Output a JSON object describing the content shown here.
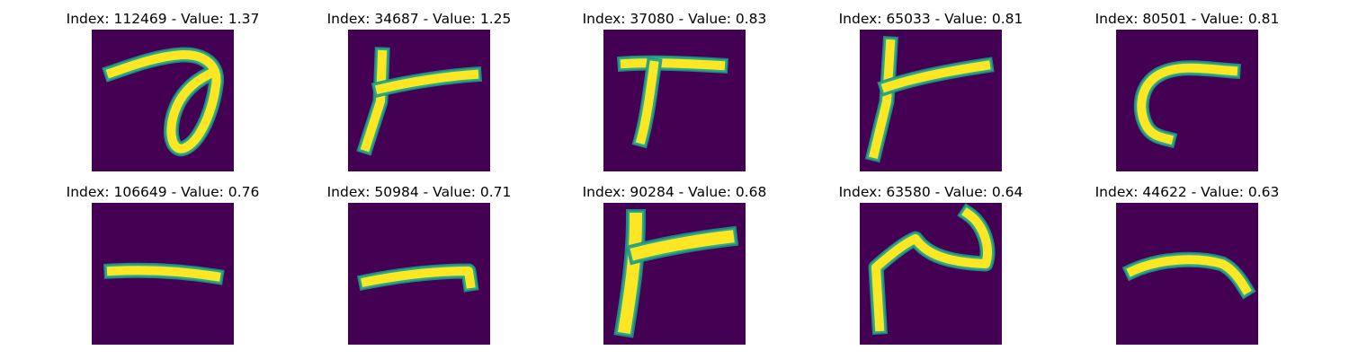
{
  "colors": {
    "background": "#440154",
    "mid": "#21918c",
    "high": "#27ad81",
    "stroke": "#fde725"
  },
  "panels": [
    {
      "title": "Index: 112469 - Value: 1.37",
      "glyph": "loop-seven-icon"
    },
    {
      "title": "Index: 34687 - Value: 1.25",
      "glyph": "vertical-and-horizontal-stroke-icon"
    },
    {
      "title": "Index: 37080 - Value: 0.83",
      "glyph": "seven-like-stroke-icon"
    },
    {
      "title": "Index: 65033 - Value: 0.81",
      "glyph": "slanted-crossing-stroke-icon"
    },
    {
      "title": "Index: 80501 - Value: 0.81",
      "glyph": "curved-corner-stroke-icon"
    },
    {
      "title": "Index: 106649 - Value: 0.76",
      "glyph": "horizontal-dash-icon"
    },
    {
      "title": "Index: 50984 - Value: 0.71",
      "glyph": "horizontal-dash-icon"
    },
    {
      "title": "Index: 90284 - Value: 0.68",
      "glyph": "bold-vertical-and-horizontal-stroke-icon"
    },
    {
      "title": "Index: 63580 - Value: 0.64",
      "glyph": "zigzag-stroke-icon"
    },
    {
      "title": "Index: 44622 - Value: 0.63",
      "glyph": "arched-dash-icon"
    }
  ]
}
